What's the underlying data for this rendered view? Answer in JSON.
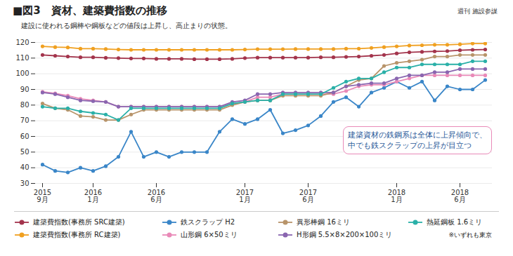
{
  "chart_data": {
    "type": "line",
    "title": "■図3　資材、建築費指数の推移",
    "subtitle": "建設に使われる鋼棒や鋼板などの値段は上昇し、高止まりの状態。",
    "source": "週刊 施設参謀",
    "annotation": "建築資材の鉄鋼系は全体に上昇傾向で、\n中でも鉄スクラップの上昇が目立つ",
    "note": "※いずれも東京",
    "categories": [
      "2015\n9月",
      null,
      null,
      null,
      "2016\n1月",
      null,
      null,
      null,
      null,
      "2016\n6月",
      null,
      null,
      null,
      null,
      null,
      null,
      "2017\n1月",
      null,
      null,
      null,
      null,
      "2017\n6月",
      null,
      null,
      null,
      null,
      null,
      null,
      "2018\n1月",
      null,
      null,
      null,
      null,
      "2018\n6月",
      null,
      null
    ],
    "ylim": [
      30,
      120
    ],
    "yticks": [
      30,
      40,
      50,
      60,
      70,
      80,
      90,
      100,
      110,
      120
    ],
    "grid": true,
    "legend": "bottom",
    "marker": "circle",
    "series": [
      {
        "name": "建築費指数(事務所 SRC建築)",
        "color": "#a3344c",
        "values": [
          112,
          111.5,
          111,
          110.5,
          110.5,
          110.2,
          110,
          109.8,
          109.8,
          109.5,
          109.5,
          109.5,
          109.3,
          109.3,
          109.3,
          109.5,
          110,
          110.3,
          110.3,
          110.3,
          110.3,
          110.3,
          110.5,
          110.5,
          110.8,
          111,
          111.5,
          112,
          113,
          113.7,
          114,
          114.3,
          114.5,
          115,
          115.3,
          115.5
        ]
      },
      {
        "name": "建築費指数(事務所 RC建築)",
        "color": "#f0a020",
        "values": [
          117.5,
          117,
          116.8,
          116,
          116,
          115.8,
          115.5,
          115.3,
          115.3,
          115.3,
          115.3,
          115.3,
          115.3,
          115.3,
          115.3,
          115.3,
          115.5,
          115.7,
          115.7,
          115.7,
          115.8,
          115.8,
          115.8,
          115.8,
          116,
          116,
          116.5,
          117,
          117.5,
          118,
          118.2,
          118.5,
          118.5,
          118.8,
          119.3,
          119.3
        ]
      },
      {
        "name": "鉄スクラップ H2",
        "color": "#3a86c8",
        "values": [
          42,
          38,
          37,
          40,
          38,
          41,
          47,
          63,
          47,
          50,
          47,
          50,
          50,
          50,
          63,
          71,
          68,
          71,
          77,
          62,
          64,
          67,
          73,
          82,
          85,
          79,
          88,
          91,
          95,
          91,
          95,
          83,
          92,
          90,
          90,
          96
        ]
      },
      {
        "name": "山形鋼 6×50ミリ",
        "color": "#e98ab8",
        "values": [
          88.5,
          87.5,
          86,
          84,
          83,
          82,
          79,
          79,
          79,
          79,
          79,
          79,
          79,
          79,
          79,
          81,
          82,
          85,
          85,
          87,
          87,
          87,
          87,
          87,
          89,
          92,
          93,
          93,
          95,
          97,
          99,
          99,
          99,
          99,
          99,
          99
        ]
      },
      {
        "name": "異形棒鋼 16ミリ",
        "color": "#b8946a",
        "values": [
          81,
          78,
          77,
          73,
          72.5,
          70.5,
          70.5,
          74,
          77,
          77,
          77,
          77,
          77,
          77,
          77,
          80,
          82,
          83,
          83,
          86,
          86,
          86,
          86,
          88,
          92,
          96,
          97,
          105,
          107,
          108,
          109,
          111,
          111,
          112,
          112,
          112
        ]
      },
      {
        "name": "H形鋼 5.5×8×200×100ミリ",
        "color": "#8a66b0",
        "values": [
          88,
          87,
          85,
          83,
          82.5,
          82,
          79,
          79,
          79,
          79,
          79,
          79,
          79,
          79,
          79,
          82,
          83,
          87,
          87,
          88,
          88,
          88,
          88,
          88,
          92,
          93,
          94,
          94,
          97,
          99,
          99,
          101,
          101,
          103,
          103,
          103
        ]
      },
      {
        "name": "熱延鋼板 1.6ミリ",
        "color": "#2ab0a8",
        "values": [
          79,
          78,
          78,
          76,
          75,
          74,
          70.5,
          78,
          78,
          78,
          78,
          78,
          78,
          78,
          78,
          81,
          82,
          83,
          83,
          87,
          87,
          87,
          87,
          91,
          95,
          97,
          97,
          101,
          104,
          104,
          106,
          106,
          106,
          106,
          108,
          108
        ]
      }
    ]
  }
}
